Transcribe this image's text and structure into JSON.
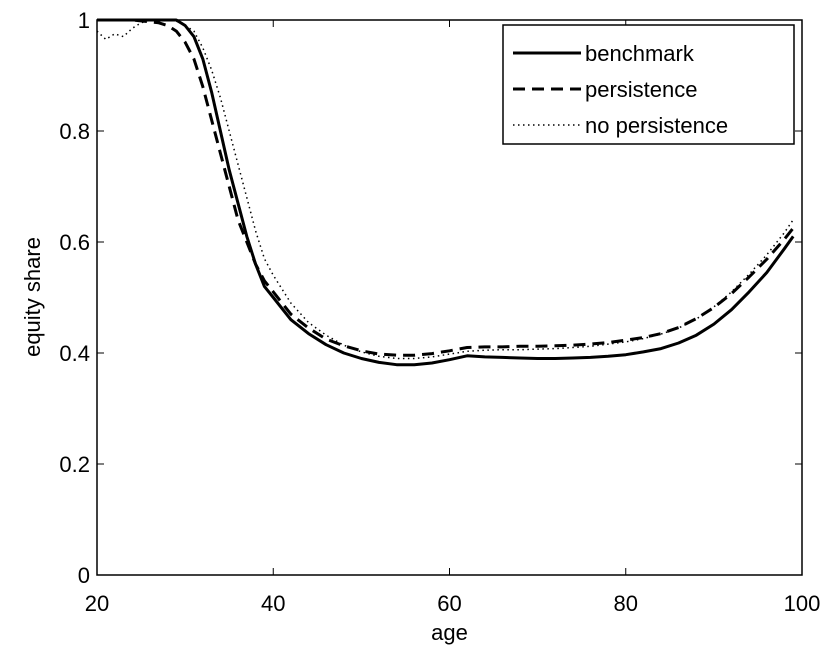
{
  "chart_data": {
    "type": "line",
    "xlabel": "age",
    "ylabel": "equity share",
    "xlim": [
      20,
      100
    ],
    "ylim": [
      0,
      1
    ],
    "xticks": [
      20,
      40,
      60,
      80,
      100
    ],
    "yticks": [
      0,
      0.2,
      0.4,
      0.6,
      0.8,
      1
    ],
    "xtick_labels": [
      "20",
      "40",
      "60",
      "80",
      "100"
    ],
    "ytick_labels": [
      "0",
      "0.2",
      "0.4",
      "0.6",
      "0.8",
      "1"
    ],
    "grid": false,
    "legend_position": "top-right",
    "series": [
      {
        "name": "benchmark",
        "style": "solid",
        "x": [
          20,
          25,
          29,
          30,
          31,
          32,
          33,
          34,
          35,
          36,
          37,
          38,
          39,
          40,
          42,
          44,
          46,
          48,
          50,
          52,
          54,
          56,
          58,
          60,
          62,
          64,
          66,
          68,
          70,
          72,
          74,
          76,
          78,
          80,
          82,
          84,
          86,
          88,
          90,
          92,
          94,
          96,
          98,
          99
        ],
        "y": [
          1.0,
          1.0,
          1.0,
          0.99,
          0.97,
          0.93,
          0.87,
          0.8,
          0.73,
          0.67,
          0.61,
          0.56,
          0.52,
          0.5,
          0.46,
          0.435,
          0.415,
          0.4,
          0.39,
          0.383,
          0.379,
          0.379,
          0.382,
          0.388,
          0.395,
          0.393,
          0.392,
          0.391,
          0.39,
          0.39,
          0.391,
          0.392,
          0.394,
          0.397,
          0.402,
          0.408,
          0.418,
          0.432,
          0.452,
          0.478,
          0.51,
          0.545,
          0.588,
          0.61
        ]
      },
      {
        "name": "persistence",
        "style": "dashed",
        "x": [
          20,
          24,
          27,
          28,
          29,
          30,
          31,
          32,
          33,
          34,
          35,
          36,
          37,
          38,
          39,
          40,
          42,
          44,
          46,
          48,
          50,
          52,
          54,
          56,
          58,
          60,
          62,
          64,
          66,
          68,
          70,
          72,
          74,
          76,
          78,
          80,
          82,
          84,
          86,
          88,
          90,
          92,
          94,
          96,
          98,
          99
        ],
        "y": [
          1.0,
          1.0,
          0.995,
          0.99,
          0.98,
          0.96,
          0.93,
          0.88,
          0.82,
          0.76,
          0.7,
          0.64,
          0.6,
          0.56,
          0.53,
          0.51,
          0.47,
          0.445,
          0.425,
          0.413,
          0.404,
          0.398,
          0.396,
          0.396,
          0.399,
          0.404,
          0.41,
          0.411,
          0.411,
          0.412,
          0.412,
          0.413,
          0.414,
          0.416,
          0.419,
          0.423,
          0.428,
          0.435,
          0.446,
          0.462,
          0.482,
          0.507,
          0.537,
          0.569,
          0.605,
          0.625
        ]
      },
      {
        "name": "no persistence",
        "style": "dotted",
        "x": [
          20,
          21,
          22,
          23,
          24,
          25,
          26,
          27,
          28,
          29,
          30,
          31,
          32,
          33,
          34,
          35,
          36,
          37,
          38,
          39,
          40,
          42,
          44,
          46,
          48,
          50,
          52,
          54,
          56,
          58,
          60,
          62,
          64,
          66,
          68,
          70,
          72,
          74,
          76,
          78,
          80,
          82,
          84,
          86,
          88,
          90,
          92,
          94,
          96,
          98,
          99
        ],
        "y": [
          0.98,
          0.965,
          0.975,
          0.97,
          0.985,
          0.995,
          1.0,
          1.0,
          1.0,
          0.998,
          0.99,
          0.98,
          0.95,
          0.91,
          0.86,
          0.8,
          0.74,
          0.68,
          0.62,
          0.57,
          0.54,
          0.49,
          0.455,
          0.432,
          0.414,
          0.402,
          0.394,
          0.39,
          0.39,
          0.393,
          0.398,
          0.403,
          0.405,
          0.406,
          0.406,
          0.407,
          0.408,
          0.41,
          0.412,
          0.416,
          0.42,
          0.426,
          0.434,
          0.445,
          0.461,
          0.483,
          0.51,
          0.542,
          0.577,
          0.617,
          0.64
        ]
      }
    ]
  }
}
